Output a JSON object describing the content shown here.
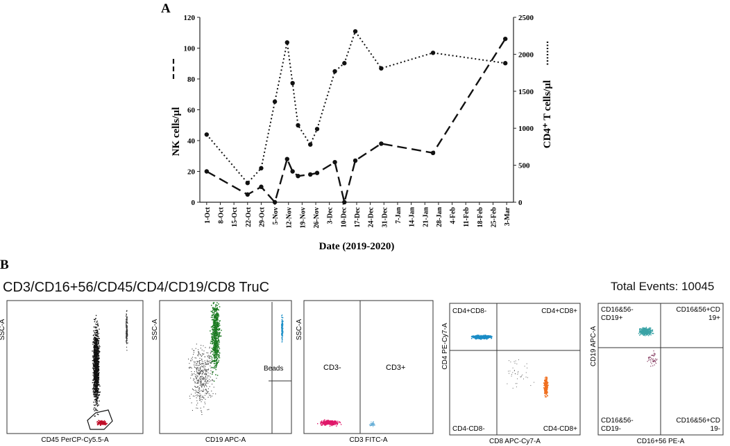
{
  "panel_a": {
    "letter": "A",
    "chart_data": {
      "type": "line",
      "xlabel": "Date (2019-2020)",
      "ylabel_left": "NK cells/µl",
      "ylabel_right": "CD4⁺ T cells/µl",
      "categories": [
        "1-Oct",
        "8-Oct",
        "15-Oct",
        "22-Oct",
        "29-Oct",
        "5-Nov",
        "12-Nov",
        "19-Nov",
        "26-Nov",
        "3-Dec",
        "10-Dec",
        "17-Dec",
        "24-Dec",
        "31-Dec",
        "7-Jan",
        "14-Jan",
        "21-Jan",
        "28-Jan",
        "4-Feb",
        "11-Feb",
        "18-Feb",
        "25-Feb",
        "3-Mar"
      ],
      "y_left": {
        "range": [
          0,
          120
        ],
        "ticks": [
          0,
          20,
          40,
          60,
          80,
          100,
          120
        ]
      },
      "y_right": {
        "range": [
          0,
          2500
        ],
        "ticks": [
          0,
          500,
          1000,
          1500,
          2000,
          2500
        ]
      },
      "series": [
        {
          "name": "NK cells/µl",
          "axis": "left",
          "style": "dashed",
          "points": [
            [
              0,
              20
            ],
            [
              3,
              5
            ],
            [
              4,
              10
            ],
            [
              5,
              0
            ],
            [
              5.9,
              28
            ],
            [
              6.3,
              20
            ],
            [
              6.7,
              17
            ],
            [
              7.6,
              18
            ],
            [
              8.1,
              19
            ],
            [
              9.4,
              26
            ],
            [
              10.1,
              0
            ],
            [
              10.9,
              27
            ],
            [
              12.8,
              38
            ],
            [
              16.6,
              32
            ],
            [
              21.9,
              106
            ]
          ]
        },
        {
          "name": "CD4⁺ T cells/µl",
          "axis": "right",
          "style": "dotted",
          "points": [
            [
              0,
              915
            ],
            [
              3,
              260
            ],
            [
              4,
              460
            ],
            [
              5,
              1360
            ],
            [
              5.9,
              2160
            ],
            [
              6.3,
              1610
            ],
            [
              6.7,
              1040
            ],
            [
              7.6,
              780
            ],
            [
              8.1,
              990
            ],
            [
              9.4,
              1770
            ],
            [
              10.1,
              1880
            ],
            [
              10.9,
              2310
            ],
            [
              12.8,
              1810
            ],
            [
              16.6,
              2020
            ],
            [
              21.9,
              1880
            ]
          ]
        }
      ]
    }
  },
  "panel_b": {
    "letter": "B",
    "title": "CD3/CD16+56/CD45/CD4/CD19/CD8 TruC",
    "total_events": "Total Events: 10045",
    "plots": [
      {
        "xlabel": "CD45 PerCP-Cy5.5-A",
        "ylabel": "SSC-A",
        "gates": []
      },
      {
        "xlabel": "CD19 APC-A",
        "ylabel": "SSC-A",
        "gates": [
          "Beads"
        ]
      },
      {
        "xlabel": "CD3 FITC-A",
        "ylabel": "SSC-A",
        "gates": [
          "CD3-",
          "CD3+"
        ]
      },
      {
        "xlabel": "CD8 APC-Cy7-A",
        "ylabel": "CD4 PE-Cy7-A",
        "gates": [
          "CD4+CD8-",
          "CD4+CD8+",
          "CD4-CD8-",
          "CD4-CD8+"
        ]
      },
      {
        "xlabel": "CD16+56 PE-A",
        "ylabel": "CD19 APC-A",
        "gates": [
          "CD16&56-\nCD19+",
          "CD16&56+CD\n19+",
          "CD16&56-\nCD19-",
          "CD16&56+CD\n19-"
        ]
      }
    ]
  }
}
